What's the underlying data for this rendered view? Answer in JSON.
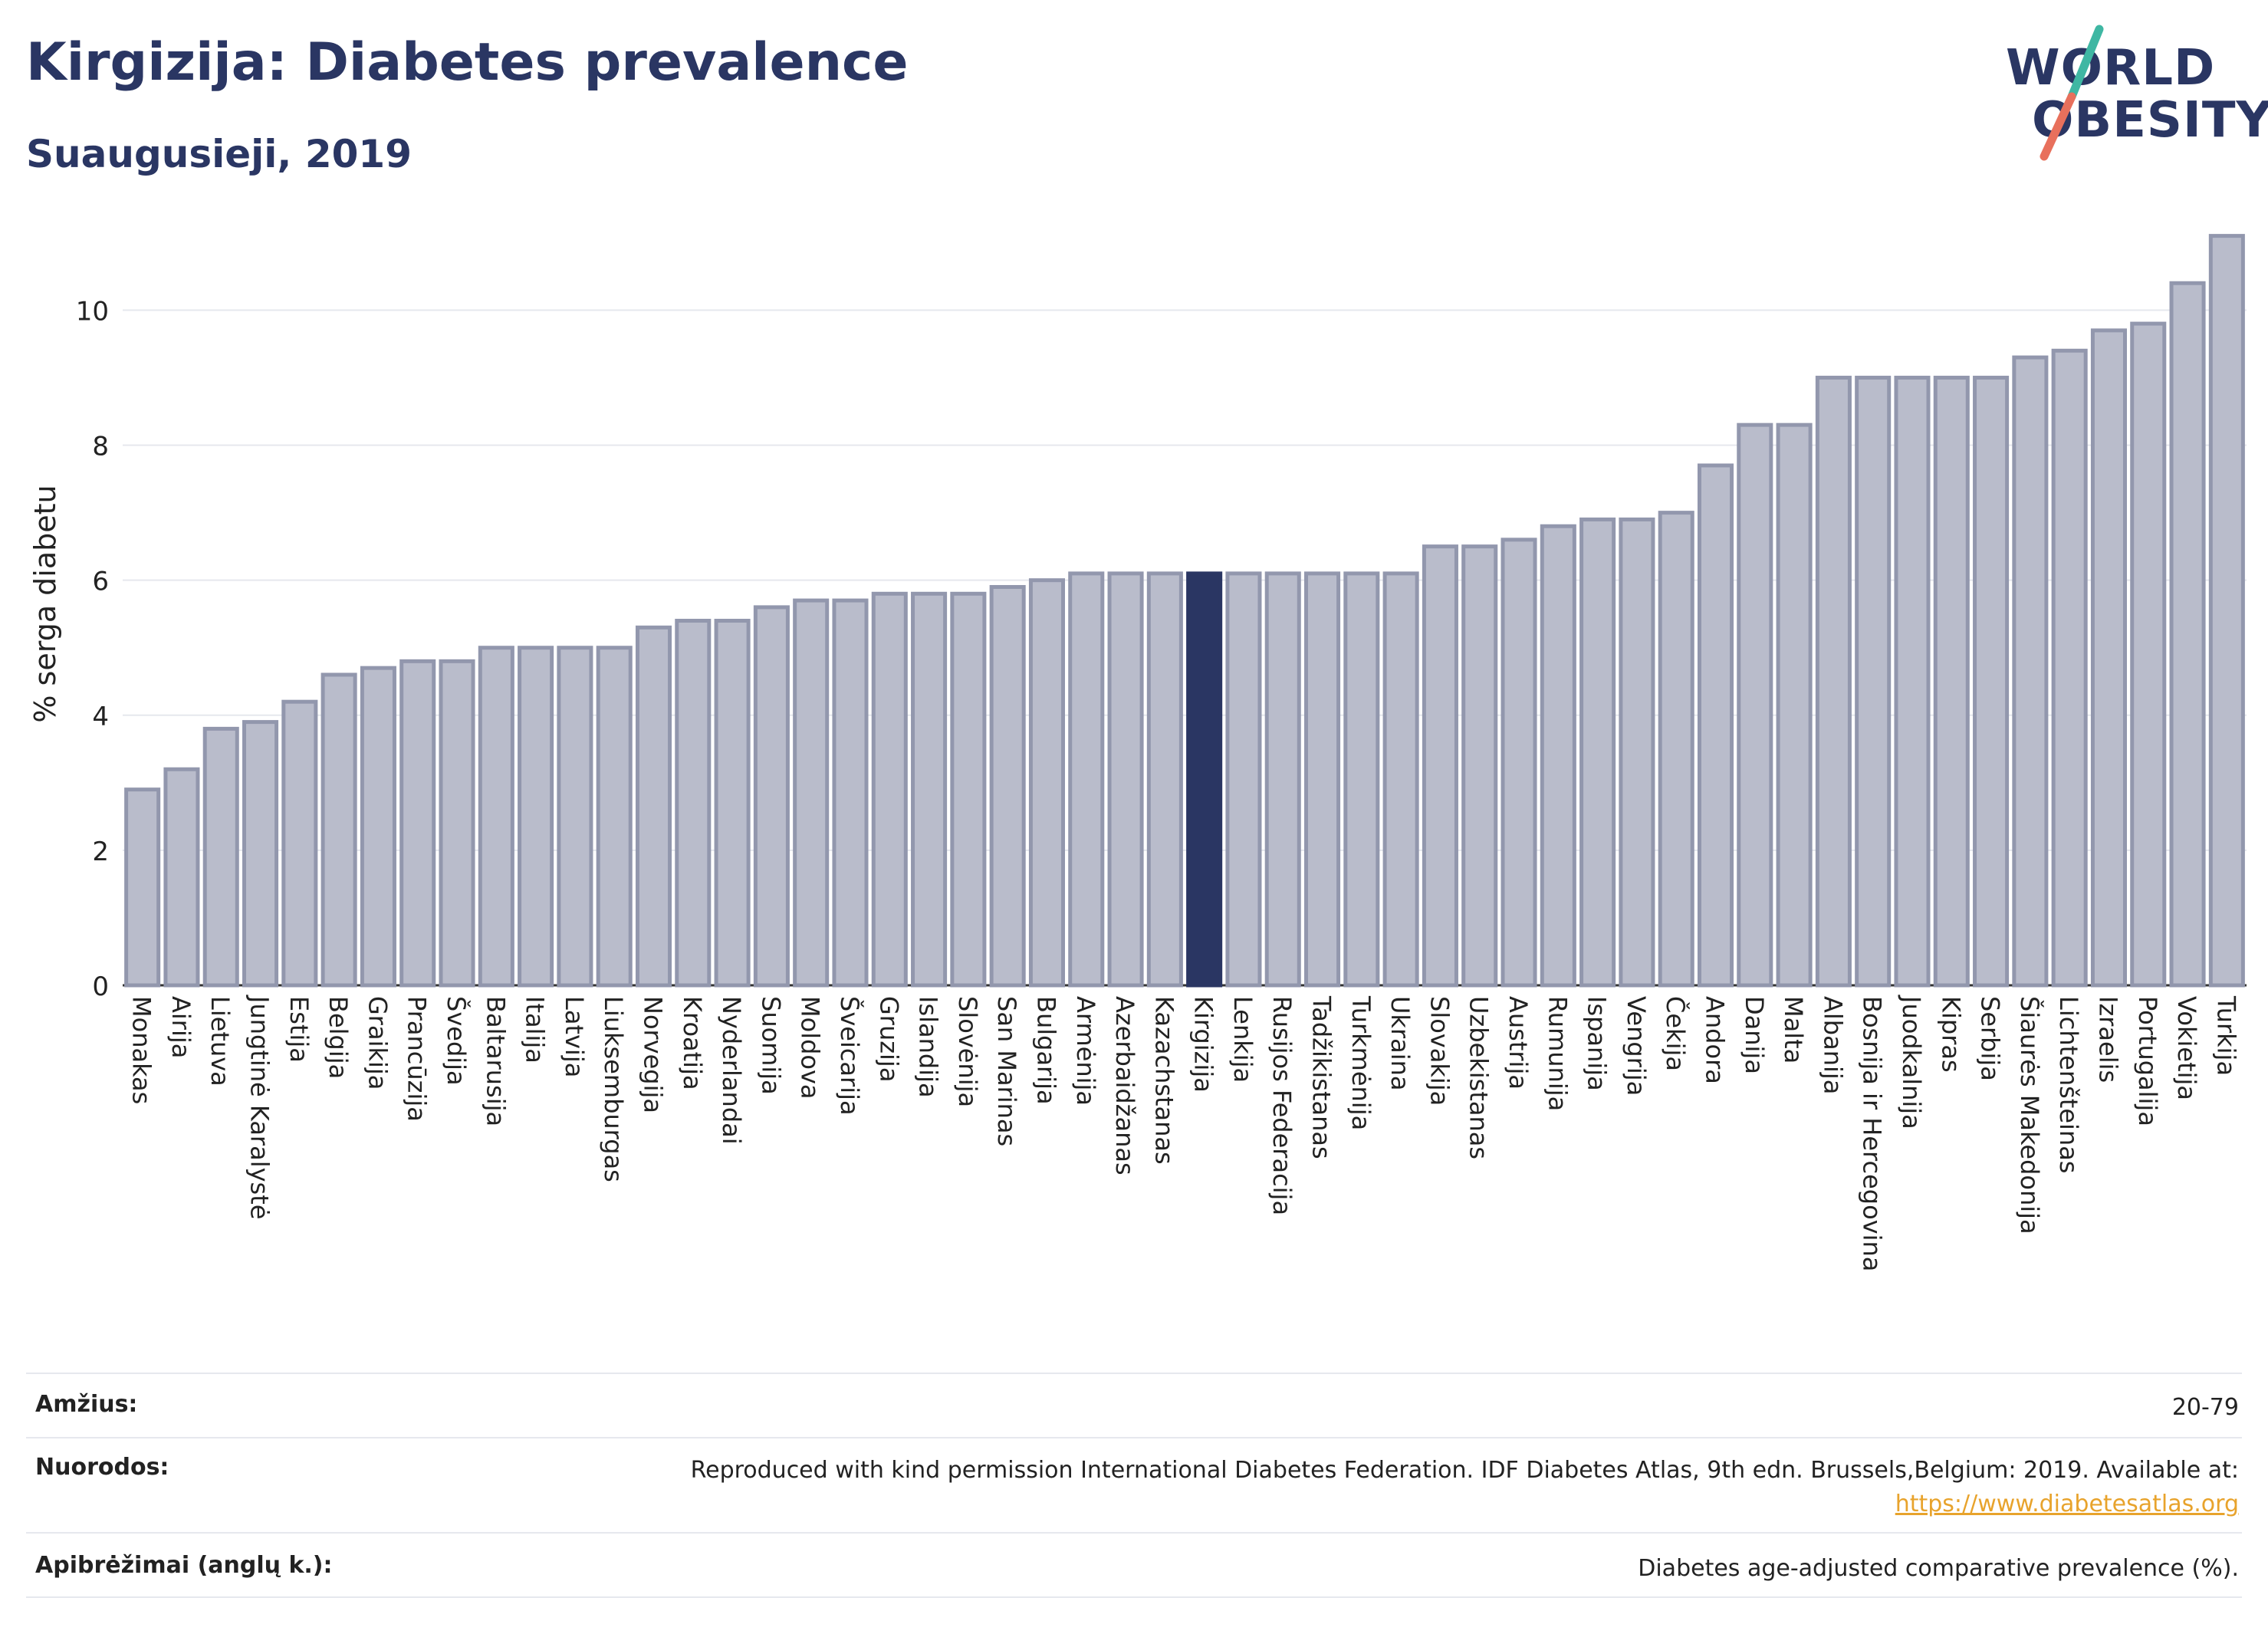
{
  "header": {
    "title": "Kirgizija: Diabetes prevalence",
    "subtitle": "Suaugusieji, 2019"
  },
  "logo": {
    "line1": "WORLD",
    "line2": "OBESITY",
    "colors": {
      "text": "#2a3663",
      "slash_top": "#3fb7a3",
      "slash_bottom": "#e8705c"
    }
  },
  "chart_data": {
    "type": "bar",
    "ylabel": "% serga diabetu",
    "ylim": [
      0,
      11.3
    ],
    "yticks": [
      0,
      2,
      4,
      6,
      8,
      10
    ],
    "grid": true,
    "highlight": "Kirgizija",
    "colors": {
      "bar": "#b9bccb",
      "bar_edge": "#9297ad",
      "highlight": "#2a3663",
      "grid": "#e6e8ee"
    },
    "categories": [
      "Monakas",
      "Airija",
      "Lietuva",
      "Jungtinė Karalystė",
      "Estija",
      "Belgija",
      "Graikija",
      "Prancūzija",
      "Švedija",
      "Baltarusija",
      "Italija",
      "Latvija",
      "Liuksemburgas",
      "Norvegija",
      "Kroatija",
      "Nyderlandai",
      "Suomija",
      "Moldova",
      "Šveicarija",
      "Gruzija",
      "Islandija",
      "Slovėnija",
      "San Marinas",
      "Bulgarija",
      "Armėnija",
      "Azerbaidžanas",
      "Kazachstanas",
      "Kirgizija",
      "Lenkija",
      "Rusijos Federacija",
      "Tadžikistanas",
      "Turkmėnija",
      "Ukraina",
      "Slovakija",
      "Uzbekistanas",
      "Austrija",
      "Rumunija",
      "Ispanija",
      "Vengrija",
      "Čekija",
      "Andora",
      "Danija",
      "Malta",
      "Albanija",
      "Bosnija ir Hercegovina",
      "Juodkalnija",
      "Kipras",
      "Serbija",
      "Šiaurės Makedonija",
      "Lichtenšteinas",
      "Izraelis",
      "Portugalija",
      "Vokietija",
      "Turkija"
    ],
    "values": [
      2.9,
      3.2,
      3.8,
      3.9,
      4.2,
      4.6,
      4.7,
      4.8,
      4.8,
      5.0,
      5.0,
      5.0,
      5.0,
      5.3,
      5.4,
      5.4,
      5.6,
      5.7,
      5.7,
      5.8,
      5.8,
      5.8,
      5.9,
      6.0,
      6.1,
      6.1,
      6.1,
      6.1,
      6.1,
      6.1,
      6.1,
      6.1,
      6.1,
      6.5,
      6.5,
      6.6,
      6.8,
      6.9,
      6.9,
      7.0,
      7.7,
      8.3,
      8.3,
      9.0,
      9.0,
      9.0,
      9.0,
      9.0,
      9.3,
      9.4,
      9.7,
      9.8,
      10.4,
      11.1
    ]
  },
  "footer": {
    "age_label": "Amžius:",
    "age_value": "20-79",
    "refs_label": "Nuorodos:",
    "refs_text": "Reproduced with kind permission International Diabetes Federation. IDF Diabetes Atlas, 9th edn. Brussels,Belgium: 2019. Available at:",
    "refs_link": "https://www.diabetesatlas.org",
    "defs_label": "Apibrėžimai (anglų k.):",
    "defs_value": "Diabetes age-adjusted comparative prevalence (%)."
  }
}
